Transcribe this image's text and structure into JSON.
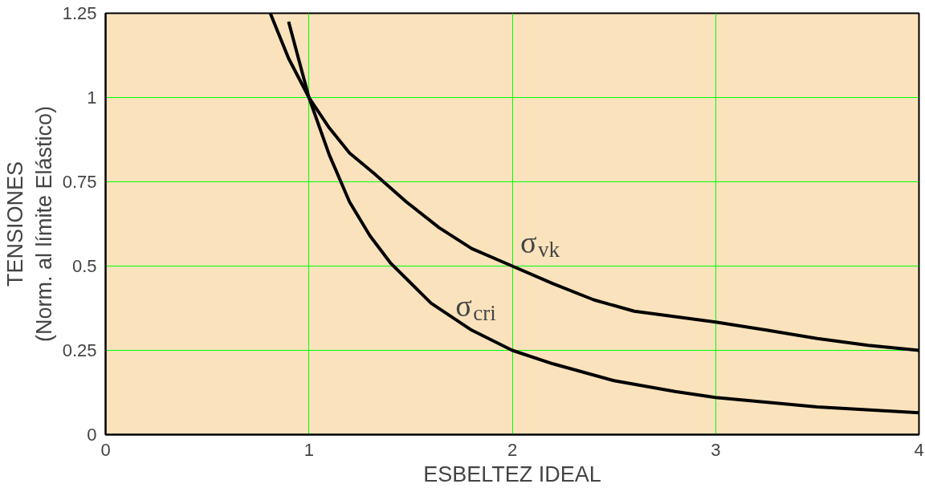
{
  "chart_data": {
    "type": "line",
    "xlabel": "ESBELTEZ IDEAL",
    "ylabel": "TENSIONES\n(Norm. al límite Elástico)",
    "xlim": [
      0,
      4
    ],
    "ylim": [
      0,
      1.25
    ],
    "xticks": [
      0,
      1,
      2,
      3,
      4
    ],
    "yticks": [
      0,
      0.25,
      0.5,
      0.75,
      1,
      1.25
    ],
    "grid": true,
    "marker": "none",
    "line_style": "solid",
    "series": [
      {
        "name": "σ$_{vk}$",
        "color": "#000000",
        "x": [
          0.81,
          0.9,
          1.0,
          1.1,
          1.2,
          1.32,
          1.48,
          1.64,
          1.8,
          2.0,
          2.2,
          2.4,
          2.6,
          2.8,
          3.0,
          3.25,
          3.5,
          3.75,
          4.0
        ],
        "values": [
          1.25,
          1.116,
          1.0,
          0.91,
          0.835,
          0.775,
          0.69,
          0.614,
          0.552,
          0.5,
          0.448,
          0.4,
          0.366,
          0.35,
          0.334,
          0.31,
          0.285,
          0.265,
          0.25
        ]
      },
      {
        "name": "σ$_{cri}$",
        "color": "#000000",
        "x": [
          0.9,
          1.0,
          1.1,
          1.2,
          1.3,
          1.4,
          1.6,
          1.8,
          2.0,
          2.2,
          2.5,
          2.8,
          3.0,
          3.5,
          4.0
        ],
        "values": [
          1.225,
          1.0,
          0.83,
          0.69,
          0.59,
          0.51,
          0.39,
          0.31,
          0.25,
          0.21,
          0.16,
          0.128,
          0.11,
          0.082,
          0.065
        ]
      }
    ]
  }
}
